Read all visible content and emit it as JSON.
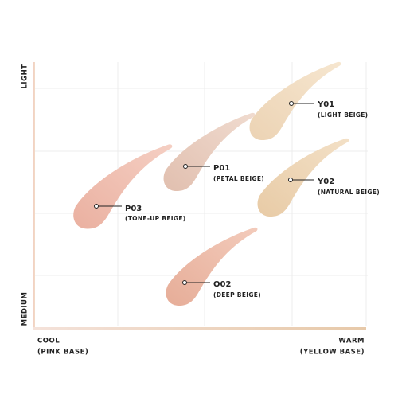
{
  "axes": {
    "y_top": "LIGHT",
    "y_bottom": "MEDIUM",
    "x_left": {
      "title": "COOL",
      "subtitle": "(PINK BASE)"
    },
    "x_right": {
      "title": "WARM",
      "subtitle": "(YELLOW BASE)"
    }
  },
  "shades": [
    {
      "code": "Y01",
      "name": "(LIGHT BEIGE)"
    },
    {
      "code": "P01",
      "name": "(PETAL BEIGE)"
    },
    {
      "code": "Y02",
      "name": "(NATURAL BEIGE)"
    },
    {
      "code": "P03",
      "name": "(TONE-UP BEIGE)"
    },
    {
      "code": "O02",
      "name": "(DEEP BEIGE)"
    }
  ]
}
